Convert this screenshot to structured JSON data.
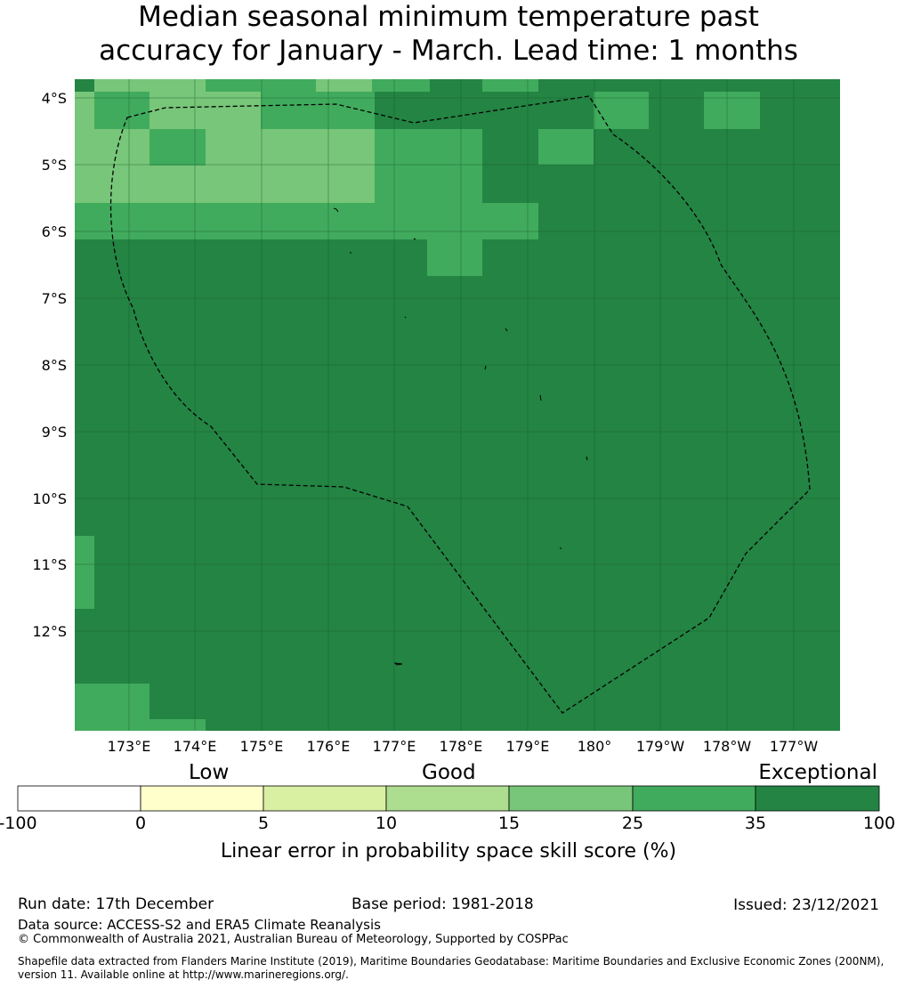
{
  "title": {
    "line1": "Median seasonal minimum temperature past",
    "line2": "accuracy for January - March. Lead time: 1 months"
  },
  "map": {
    "lat_labels": [
      "4°S",
      "5°S",
      "6°S",
      "7°S",
      "8°S",
      "9°S",
      "10°S",
      "11°S",
      "12°S"
    ],
    "lon_labels": [
      "173°E",
      "174°E",
      "175°E",
      "176°E",
      "177°E",
      "178°E",
      "179°E",
      "180°",
      "179°W",
      "178°W",
      "177°W"
    ],
    "boundary_style": "dashed",
    "grid": true
  },
  "colorbar": {
    "categories": [
      "Low",
      "Good",
      "Exceptional"
    ],
    "ticks": [
      "-100",
      "0",
      "5",
      "10",
      "15",
      "25",
      "35",
      "100"
    ],
    "colors": [
      "#ffffff",
      "#ffffcc",
      "#d9f0a3",
      "#addd8e",
      "#78c679",
      "#41ab5d",
      "#238443"
    ],
    "label": "Linear error in probability space skill score (%)"
  },
  "footer": {
    "run_date": "Run date: 17th December",
    "base_period": "Base period: 1981-2018",
    "issued": "Issued: 23/12/2021",
    "data_source": "Data source: ACCESS-S2 and ERA5 Climate Reanalysis",
    "copyright": "© Commonwealth of Australia 2021, Australian Bureau of Meteorology, Supported by COSPPac",
    "shapefile_line1": "Shapefile data extracted from Flanders Marine Institute (2019), Maritime Boundaries Geodatabase: Maritime Boundaries and Exclusive Economic Zones (200NM),",
    "shapefile_line2": "version 11. Available online at http://www.marineregions.org/."
  }
}
